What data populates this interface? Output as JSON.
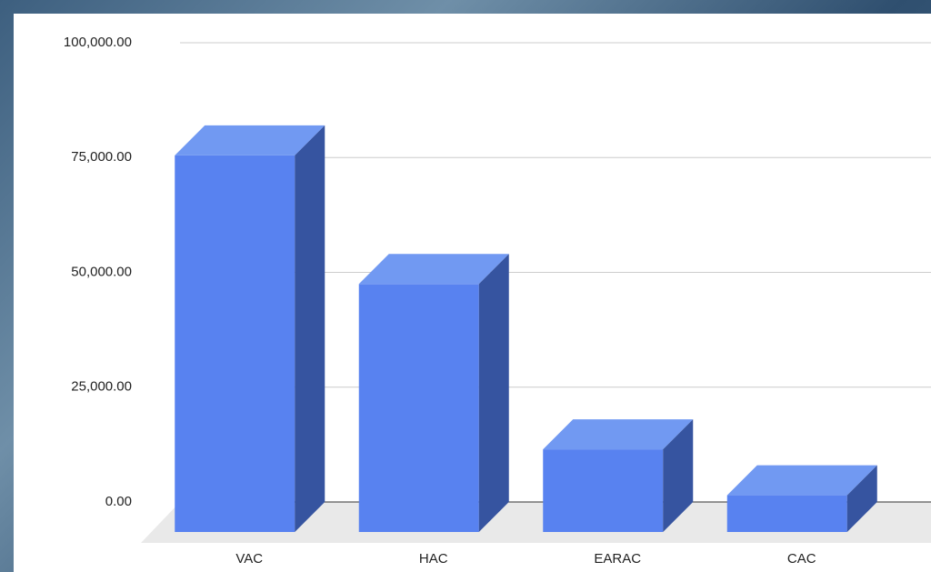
{
  "chart_data": {
    "type": "bar3d",
    "categories": [
      "VAC",
      "HAC",
      "EARAC",
      "CAC"
    ],
    "values": [
      82000,
      54000,
      18000,
      8000
    ],
    "color": "#5882f0",
    "ylim": [
      0,
      100000
    ],
    "yticks": [
      {
        "value": 0,
        "label": "0.00"
      },
      {
        "value": 25000,
        "label": "25,000.00"
      },
      {
        "value": 50000,
        "label": "50,000.00"
      },
      {
        "value": 75000,
        "label": "75,000.00"
      },
      {
        "value": 100000,
        "label": "100,000.00"
      }
    ],
    "grid": true
  }
}
